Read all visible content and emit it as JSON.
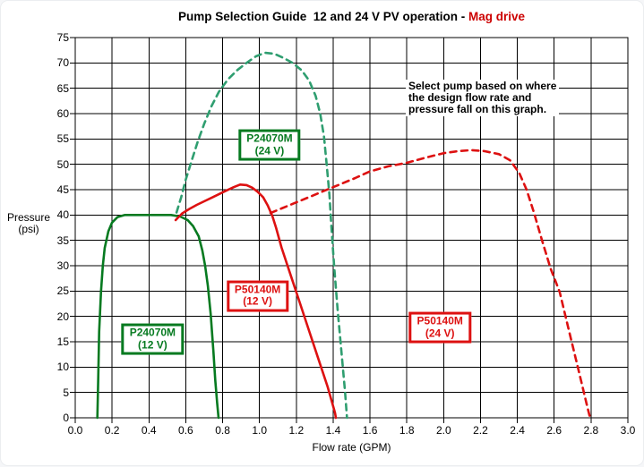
{
  "page": {
    "title_black": "Pump Selection Guide  12 and 24 V PV operation -",
    "title_red": " Mag drive",
    "title_red_color": "#cc0000"
  },
  "chart_data": {
    "type": "line",
    "title": "Pump Selection Guide  12 and 24 V PV operation - Mag drive",
    "xlabel": "Flow rate (GPM)",
    "ylabel": "Pressure (psi)",
    "ylabel_lines": [
      "Pressure",
      "(psi)"
    ],
    "xlim": [
      0,
      3
    ],
    "ylim": [
      0,
      75
    ],
    "grid": true,
    "grid_color": "#000000",
    "xticks": [
      {
        "v": 0.0,
        "label": "0.0"
      },
      {
        "v": 0.2,
        "label": "0.2"
      },
      {
        "v": 0.4,
        "label": "0.4"
      },
      {
        "v": 0.6,
        "label": "0.6"
      },
      {
        "v": 0.8,
        "label": "0.8"
      },
      {
        "v": 1.0,
        "label": "1.0"
      },
      {
        "v": 1.2,
        "label": "1.2"
      },
      {
        "v": 1.4,
        "label": "1.4"
      },
      {
        "v": 1.6,
        "label": "1.6"
      },
      {
        "v": 1.8,
        "label": "1.8"
      },
      {
        "v": 2.0,
        "label": "2.0"
      },
      {
        "v": 2.2,
        "label": "2.2"
      },
      {
        "v": 2.4,
        "label": "2.4"
      },
      {
        "v": 2.6,
        "label": "2.6"
      },
      {
        "v": 2.8,
        "label": "2.8"
      },
      {
        "v": 3.0,
        "label": "3.0"
      }
    ],
    "yticks": [
      {
        "v": 0,
        "label": "0"
      },
      {
        "v": 5,
        "label": "5"
      },
      {
        "v": 10,
        "label": "10"
      },
      {
        "v": 15,
        "label": "15"
      },
      {
        "v": 20,
        "label": "20"
      },
      {
        "v": 25,
        "label": "25"
      },
      {
        "v": 30,
        "label": "30"
      },
      {
        "v": 35,
        "label": "35"
      },
      {
        "v": 40,
        "label": "40"
      },
      {
        "v": 45,
        "label": "45"
      },
      {
        "v": 50,
        "label": "50"
      },
      {
        "v": 55,
        "label": "55"
      },
      {
        "v": 60,
        "label": "60"
      },
      {
        "v": 65,
        "label": "65"
      },
      {
        "v": 70,
        "label": "70"
      },
      {
        "v": 75,
        "label": "75"
      }
    ],
    "annotation": {
      "lines": [
        "Select pump based on where",
        "the design flow rate and",
        "pressure fall on this graph."
      ]
    },
    "series": [
      {
        "id": "curve-p24070m-12v",
        "name": "P24070M (12 V)",
        "style": "solid",
        "color": "#067a20",
        "points": [
          [
            0.12,
            0
          ],
          [
            0.125,
            8
          ],
          [
            0.13,
            17
          ],
          [
            0.14,
            25
          ],
          [
            0.15,
            30
          ],
          [
            0.16,
            33.5
          ],
          [
            0.18,
            36.8
          ],
          [
            0.2,
            38.5
          ],
          [
            0.23,
            39.6
          ],
          [
            0.27,
            40
          ],
          [
            0.4,
            40
          ],
          [
            0.52,
            40
          ],
          [
            0.57,
            39.7
          ],
          [
            0.61,
            39
          ],
          [
            0.64,
            37.8
          ],
          [
            0.67,
            35.8
          ],
          [
            0.69,
            33
          ],
          [
            0.705,
            30
          ],
          [
            0.72,
            26
          ],
          [
            0.735,
            20.5
          ],
          [
            0.75,
            13
          ],
          [
            0.76,
            7.5
          ],
          [
            0.77,
            3
          ],
          [
            0.778,
            0
          ]
        ]
      },
      {
        "id": "curve-p24070m-24v",
        "name": "P24070M (24 V)",
        "style": "dashed",
        "color": "#2f9e70",
        "points": [
          [
            0.55,
            40.5
          ],
          [
            0.575,
            43.5
          ],
          [
            0.6,
            47
          ],
          [
            0.63,
            50.5
          ],
          [
            0.665,
            54.5
          ],
          [
            0.7,
            58
          ],
          [
            0.74,
            61.5
          ],
          [
            0.78,
            64.3
          ],
          [
            0.83,
            66.8
          ],
          [
            0.88,
            68.6
          ],
          [
            0.93,
            70
          ],
          [
            0.98,
            71.3
          ],
          [
            1.03,
            72
          ],
          [
            1.08,
            71.8
          ],
          [
            1.13,
            71
          ],
          [
            1.18,
            70
          ],
          [
            1.23,
            68.5
          ],
          [
            1.27,
            66.5
          ],
          [
            1.305,
            63.5
          ],
          [
            1.33,
            60
          ],
          [
            1.35,
            55.5
          ],
          [
            1.365,
            50
          ],
          [
            1.38,
            44
          ],
          [
            1.39,
            38
          ],
          [
            1.405,
            30
          ],
          [
            1.425,
            21
          ],
          [
            1.445,
            13
          ],
          [
            1.465,
            5
          ],
          [
            1.475,
            0
          ]
        ]
      },
      {
        "id": "curve-p50140m-12v",
        "name": "P50140M (12 V)",
        "style": "solid",
        "color": "#dd1111",
        "points": [
          [
            0.545,
            39
          ],
          [
            0.58,
            40.3
          ],
          [
            0.62,
            41.2
          ],
          [
            0.66,
            42
          ],
          [
            0.7,
            42.7
          ],
          [
            0.74,
            43.4
          ],
          [
            0.78,
            44.1
          ],
          [
            0.82,
            44.8
          ],
          [
            0.86,
            45.5
          ],
          [
            0.895,
            46
          ],
          [
            0.93,
            45.9
          ],
          [
            0.96,
            45.4
          ],
          [
            0.99,
            44.6
          ],
          [
            1.02,
            43.5
          ],
          [
            1.045,
            41.9
          ],
          [
            1.07,
            39.8
          ],
          [
            1.09,
            37.5
          ],
          [
            1.12,
            33.6
          ],
          [
            1.17,
            28.1
          ],
          [
            1.22,
            22.6
          ],
          [
            1.27,
            17.1
          ],
          [
            1.32,
            11.6
          ],
          [
            1.37,
            6.1
          ],
          [
            1.41,
            1
          ],
          [
            1.415,
            0
          ]
        ]
      },
      {
        "id": "curve-p50140m-24v",
        "name": "P50140M (24 V)",
        "style": "dashed",
        "color": "#dd1111",
        "points": [
          [
            1.06,
            40.4
          ],
          [
            1.12,
            41.3
          ],
          [
            1.2,
            42.5
          ],
          [
            1.28,
            43.7
          ],
          [
            1.36,
            44.9
          ],
          [
            1.44,
            46.1
          ],
          [
            1.52,
            47.3
          ],
          [
            1.6,
            48.6
          ],
          [
            1.7,
            49.6
          ],
          [
            1.8,
            50.3
          ],
          [
            1.9,
            51.3
          ],
          [
            2.0,
            52.2
          ],
          [
            2.08,
            52.6
          ],
          [
            2.15,
            52.8
          ],
          [
            2.22,
            52.6
          ],
          [
            2.3,
            52
          ],
          [
            2.36,
            50.8
          ],
          [
            2.41,
            48.3
          ],
          [
            2.45,
            45
          ],
          [
            2.49,
            40.5
          ],
          [
            2.53,
            35.5
          ],
          [
            2.58,
            29.5
          ],
          [
            2.63,
            24.8
          ],
          [
            2.68,
            17.2
          ],
          [
            2.73,
            9.7
          ],
          [
            2.78,
            2.1
          ],
          [
            2.795,
            0
          ]
        ]
      }
    ],
    "labels": [
      {
        "id": "label-p24070m-24v",
        "lines": [
          "P24070M",
          "(24 V)"
        ],
        "color": "#067a20",
        "x": 1.055,
        "y": 53.8
      },
      {
        "id": "label-p24070m-12v",
        "lines": [
          "P24070M",
          "(12 V)"
        ],
        "color": "#067a20",
        "x": 0.42,
        "y": 15.5
      },
      {
        "id": "label-p50140m-12v",
        "lines": [
          "P50140M",
          "(12 V)"
        ],
        "color": "#dd1111",
        "x": 0.99,
        "y": 24
      },
      {
        "id": "label-p50140m-24v",
        "lines": [
          "P50140M",
          "(24 V)"
        ],
        "color": "#dd1111",
        "x": 1.98,
        "y": 17.8
      }
    ]
  }
}
